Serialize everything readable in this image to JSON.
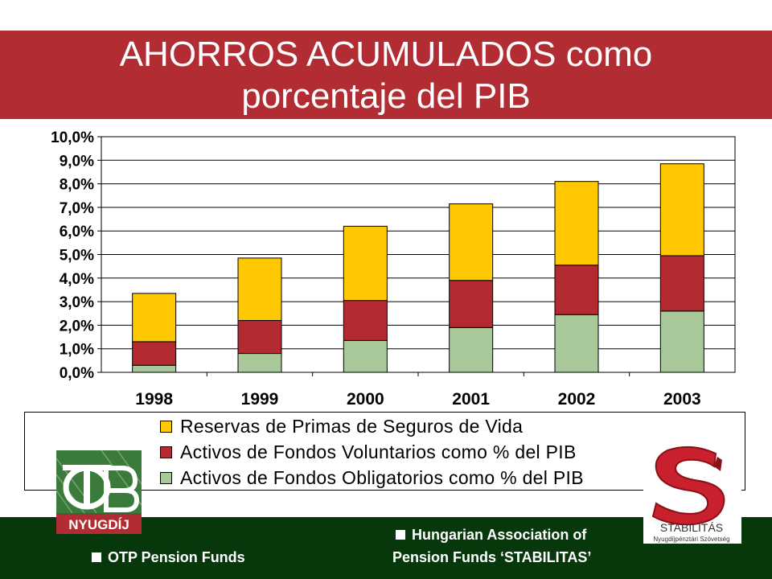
{
  "title": {
    "line1": "AHORROS ACUMULADOS como",
    "line2": "porcentaje del PIB"
  },
  "chart_data": {
    "type": "bar",
    "stacked": true,
    "categories": [
      "1998",
      "1999",
      "2000",
      "2001",
      "2002",
      "2003"
    ],
    "series": [
      {
        "name": "Activos de Fondos Obligatorios como % del PIB",
        "color": "#a8c89a",
        "values": [
          0.3,
          0.8,
          1.35,
          1.9,
          2.45,
          2.6
        ]
      },
      {
        "name": "Activos de Fondos Voluntarios como % del PIB",
        "color": "#b32a30",
        "values": [
          1.0,
          1.4,
          1.7,
          2.0,
          2.1,
          2.35
        ]
      },
      {
        "name": "Reservas de Primas de Seguros de Vida",
        "color": "#ffc800",
        "values": [
          2.05,
          2.65,
          3.15,
          3.25,
          3.55,
          3.9
        ]
      }
    ],
    "yticks": [
      "0,0%",
      "1,0%",
      "2,0%",
      "3,0%",
      "4,0%",
      "5,0%",
      "6,0%",
      "7,0%",
      "8,0%",
      "9,0%",
      "10,0%"
    ],
    "ylim": [
      0,
      10
    ],
    "grid": true,
    "legend": {
      "position": "bottom",
      "order": [
        "Reservas de Primas de Seguros de Vida",
        "Activos de Fondos Voluntarios como % del PIB",
        "Activos de Fondos Obligatorios como % del PIB"
      ]
    }
  },
  "footer": {
    "left": "OTP Pension Funds",
    "right_line1": "Hungarian Association of",
    "right_line2": "Pension Funds ‘STABILITAS’"
  },
  "logos": {
    "otp_text": "NYUGDÍJ",
    "stabilitas_name": "STABILITÁS",
    "stabilitas_sub": "Nyugdíjpénztári Szövetség"
  },
  "colors": {
    "title_band": "#b22c33",
    "footer_band": "#06380b"
  }
}
